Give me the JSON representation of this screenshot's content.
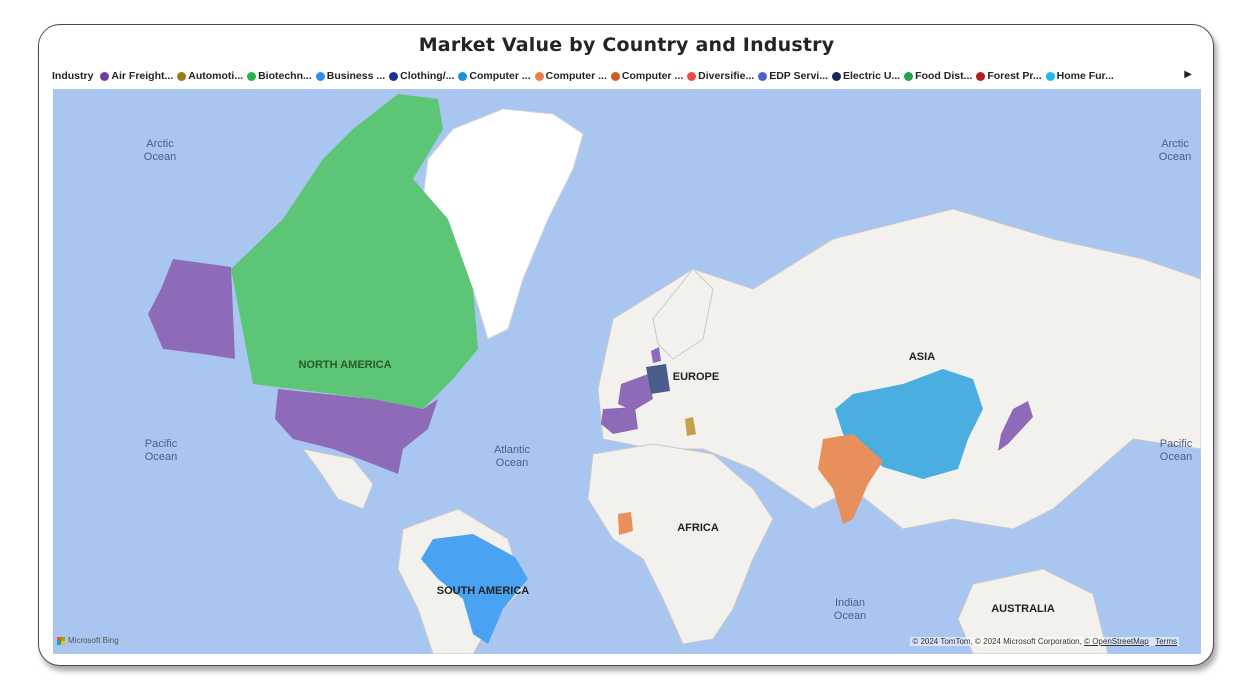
{
  "title": "Market Value by Country and Industry",
  "legend": {
    "label": "Industry",
    "items": [
      {
        "label": "Air Freight...",
        "color": "#6b3fa0"
      },
      {
        "label": "Automoti...",
        "color": "#9a7b1c"
      },
      {
        "label": "Biotechn...",
        "color": "#2bb04a"
      },
      {
        "label": "Business ...",
        "color": "#2b8ff0"
      },
      {
        "label": "Clothing/...",
        "color": "#1f2f9a"
      },
      {
        "label": "Computer ...",
        "color": "#1e90d8"
      },
      {
        "label": "Computer ...",
        "color": "#e8804a"
      },
      {
        "label": "Computer ...",
        "color": "#d15a1e"
      },
      {
        "label": "Diversifie...",
        "color": "#ef4a4a"
      },
      {
        "label": "EDP Servi...",
        "color": "#4a64c8"
      },
      {
        "label": "Electric U...",
        "color": "#14285a"
      },
      {
        "label": "Food Dist...",
        "color": "#21a24b"
      },
      {
        "label": "Forest Pr...",
        "color": "#b0201e"
      },
      {
        "label": "Home Fur...",
        "color": "#1fb8e8"
      }
    ],
    "next_icon": "scroll-right-arrow-icon"
  },
  "map": {
    "ocean_labels": [
      "Arctic",
      "Ocean",
      "Arctic",
      "Ocean",
      "Pacific",
      "Ocean",
      "Atlantic",
      "Ocean",
      "Pacific",
      "Ocean",
      "Indian",
      "Ocean"
    ],
    "continent_labels": {
      "north_america": "NORTH AMERICA",
      "europe": "EUROPE",
      "asia": "ASIA",
      "africa": "AFRICA",
      "south_america": "SOUTH AMERICA",
      "australia": "AUSTRALIA"
    },
    "shaded_countries": [
      {
        "country": "Canada",
        "color": "#5cc576"
      },
      {
        "country": "United States",
        "color": "#8e6bb8"
      },
      {
        "country": "Alaska",
        "color": "#8e6bb8"
      },
      {
        "country": "Brazil",
        "color": "#4aa3f2"
      },
      {
        "country": "China",
        "color": "#4aaee0"
      },
      {
        "country": "India",
        "color": "#e8905c"
      },
      {
        "country": "Japan",
        "color": "#8e6bb8"
      },
      {
        "country": "France",
        "color": "#8e6bb8"
      },
      {
        "country": "Spain",
        "color": "#8e6bb8"
      },
      {
        "country": "Germany",
        "color": "#4a5c8a"
      },
      {
        "country": "Denmark",
        "color": "#8e6bb8"
      },
      {
        "country": "Greece",
        "color": "#c7a04a"
      },
      {
        "country": "Ghana",
        "color": "#e8905c"
      }
    ],
    "attribution": "© 2024 TomTom, © 2024 Microsoft Corporation,",
    "osm_link": "© OpenStreetMap",
    "terms_link": "Terms",
    "provider": "Microsoft Bing",
    "colors": {
      "ocean": "#a9c6f0",
      "land": "#f2f1ee",
      "border": "#c9c9c9"
    }
  }
}
